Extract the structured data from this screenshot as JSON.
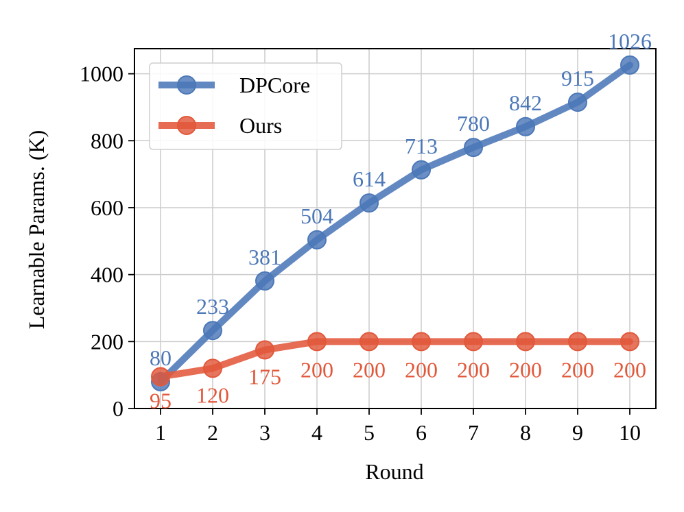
{
  "chart_data": {
    "type": "line",
    "xlabel": "Round",
    "ylabel": "Learnable Params. (K)",
    "x": [
      1,
      2,
      3,
      4,
      5,
      6,
      7,
      8,
      9,
      10
    ],
    "xticks": [
      "1",
      "2",
      "3",
      "4",
      "5",
      "6",
      "7",
      "8",
      "9",
      "10"
    ],
    "yticks": [
      "0",
      "200",
      "400",
      "600",
      "800",
      "1000"
    ],
    "ylim": [
      0,
      1075
    ],
    "xlim": [
      0.5,
      10.5
    ],
    "grid": true,
    "legend_position": "top-left",
    "series": [
      {
        "name": "DPCore",
        "color": "#4c78b8",
        "values": [
          80,
          233,
          381,
          504,
          614,
          713,
          780,
          842,
          915,
          1026
        ],
        "labels": [
          "80",
          "233",
          "381",
          "504",
          "614",
          "713",
          "780",
          "842",
          "915",
          "1026"
        ]
      },
      {
        "name": "Ours",
        "color": "#e2583b",
        "values": [
          95,
          120,
          175,
          200,
          200,
          200,
          200,
          200,
          200,
          200
        ],
        "labels": [
          "95",
          "120",
          "175",
          "200",
          "200",
          "200",
          "200",
          "200",
          "200",
          "200"
        ]
      }
    ]
  }
}
